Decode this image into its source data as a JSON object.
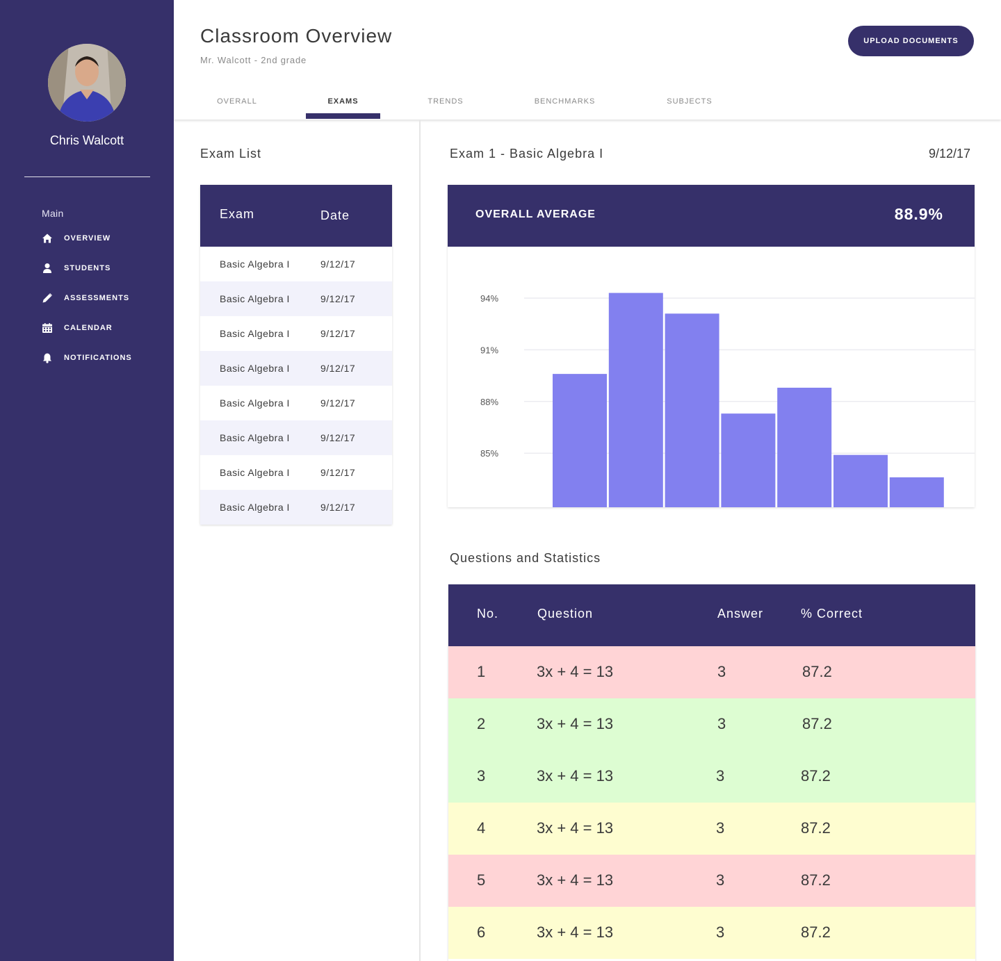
{
  "sidebar": {
    "user_name": "Chris Walcott",
    "section_label": "Main",
    "items": [
      {
        "label": "OVERVIEW",
        "icon": "home-icon"
      },
      {
        "label": "STUDENTS",
        "icon": "user-icon"
      },
      {
        "label": "ASSESSMENTS",
        "icon": "pencil-icon"
      },
      {
        "label": "CALENDAR",
        "icon": "calendar-icon"
      },
      {
        "label": "NOTIFICATIONS",
        "icon": "bell-icon"
      }
    ]
  },
  "header": {
    "title": "Classroom Overview",
    "subtitle": "Mr. Walcott - 2nd grade",
    "upload_label": "UPLOAD DOCUMENTS",
    "tabs": [
      {
        "label": "OVERALL"
      },
      {
        "label": "EXAMS",
        "active": true
      },
      {
        "label": "TRENDS"
      },
      {
        "label": "BENCHMARKS"
      },
      {
        "label": "SUBJECTS"
      }
    ]
  },
  "exam_list": {
    "title": "Exam List",
    "columns": [
      "Exam",
      "Date"
    ],
    "rows": [
      {
        "exam": "Basic Algebra I",
        "date": "9/12/17"
      },
      {
        "exam": "Basic Algebra I",
        "date": "9/12/17"
      },
      {
        "exam": "Basic Algebra I",
        "date": "9/12/17"
      },
      {
        "exam": "Basic Algebra I",
        "date": "9/12/17"
      },
      {
        "exam": "Basic Algebra I",
        "date": "9/12/17"
      },
      {
        "exam": "Basic Algebra I",
        "date": "9/12/17"
      },
      {
        "exam": "Basic Algebra I",
        "date": "9/12/17"
      },
      {
        "exam": "Basic Algebra I",
        "date": "9/12/17"
      }
    ]
  },
  "exam_detail": {
    "title": "Exam 1 - Basic Algebra I",
    "date": "9/12/17",
    "average_label": "OVERALL AVERAGE",
    "average_value": "88.9%"
  },
  "chart_data": {
    "type": "bar",
    "title": "",
    "xlabel": "",
    "ylabel": "",
    "ylim": [
      82,
      94.3
    ],
    "yticks": [
      85,
      88,
      91,
      94
    ],
    "ytick_labels": [
      "85%",
      "88%",
      "91%",
      "94%"
    ],
    "values": [
      89.6,
      94.3,
      93.1,
      87.3,
      88.8,
      84.9,
      83.6
    ],
    "grid": true,
    "bar_color": "#8280ef"
  },
  "questions": {
    "title": "Questions and Statistics",
    "columns": [
      "No.",
      "Question",
      "Answer",
      "% Correct"
    ],
    "rows": [
      {
        "no": "1",
        "question": "3x + 4 = 13",
        "answer": "3",
        "correct": "87.2",
        "status": "red"
      },
      {
        "no": "2",
        "question": "3x + 4 = 13",
        "answer": "3",
        "correct": "87.2",
        "status": "green"
      },
      {
        "no": "3",
        "question": "3x + 4 = 13",
        "answer": "3",
        "correct": "87.2",
        "status": "green"
      },
      {
        "no": "4",
        "question": "3x + 4 = 13",
        "answer": "3",
        "correct": "87.2",
        "status": "yellow"
      },
      {
        "no": "5",
        "question": "3x + 4 = 13",
        "answer": "3",
        "correct": "87.2",
        "status": "red"
      },
      {
        "no": "6",
        "question": "3x + 4 = 13",
        "answer": "3",
        "correct": "87.2",
        "status": "yellow"
      }
    ]
  },
  "colors": {
    "primary": "#36306a",
    "accent_bar": "#8280ef",
    "row_red": "#ffd4d6",
    "row_green": "#ddfdd2",
    "row_yellow": "#fefdd0",
    "row_alt": "#f2f2fb"
  }
}
